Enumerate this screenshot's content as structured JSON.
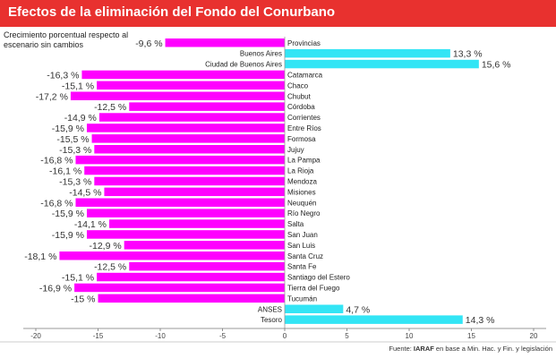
{
  "title": "Efectos de la eliminación del Fondo del Conurbano",
  "subtitle": "Crecimiento porcentual respecto al escenario sin cambios",
  "source_prefix": "Fuente: ",
  "source_org": "IARAF",
  "source_rest": " en base a Min. Hac. y Fin. y legislación",
  "colors": {
    "negative": "#ff00ff",
    "positive": "#33e5f5",
    "header": "#e8312f"
  },
  "chart_data": {
    "type": "bar",
    "orientation": "horizontal",
    "xlim": [
      -20,
      20
    ],
    "xticks": [
      -20,
      -15,
      -10,
      -5,
      0,
      5,
      10,
      15,
      20
    ],
    "grid": false,
    "categories": [
      "Provincias",
      "Buenos Aires",
      "Ciudad de Buenos Aires",
      "Catamarca",
      "Chaco",
      "Chubut",
      "Córdoba",
      "Corrientes",
      "Entre Ríos",
      "Formosa",
      "Jujuy",
      "La Pampa",
      "La Rioja",
      "Mendoza",
      "Misiones",
      "Neuquén",
      "Río Negro",
      "Salta",
      "San Juan",
      "San Luis",
      "Santa Cruz",
      "Santa Fe",
      "Santiago del Estero",
      "Tierra del Fuego",
      "Tucumán",
      "ANSES",
      "Tesoro"
    ],
    "values": [
      -9.6,
      13.3,
      15.6,
      -16.3,
      -15.1,
      -17.2,
      -12.5,
      -14.9,
      -15.9,
      -15.5,
      -15.3,
      -16.8,
      -16.1,
      -15.3,
      -14.5,
      -16.8,
      -15.9,
      -14.1,
      -15.9,
      -12.9,
      -18.1,
      -12.5,
      -15.1,
      -16.9,
      -15,
      4.7,
      14.3
    ],
    "value_labels": [
      "-9,6 %",
      "13,3 %",
      "15,6 %",
      "-16,3 %",
      "-15,1 %",
      "-17,2 %",
      "-12,5 %",
      "-14,9 %",
      "-15,9 %",
      "-15,5 %",
      "-15,3 %",
      "-16,8 %",
      "-16,1 %",
      "-15,3 %",
      "-14,5 %",
      "-16,8 %",
      "-15,9 %",
      "-14,1 %",
      "-15,9 %",
      "-12,9 %",
      "-18,1 %",
      "-12,5 %",
      "-15,1 %",
      "-16,9 %",
      "-15 %",
      "4,7 %",
      "14,3 %"
    ]
  }
}
